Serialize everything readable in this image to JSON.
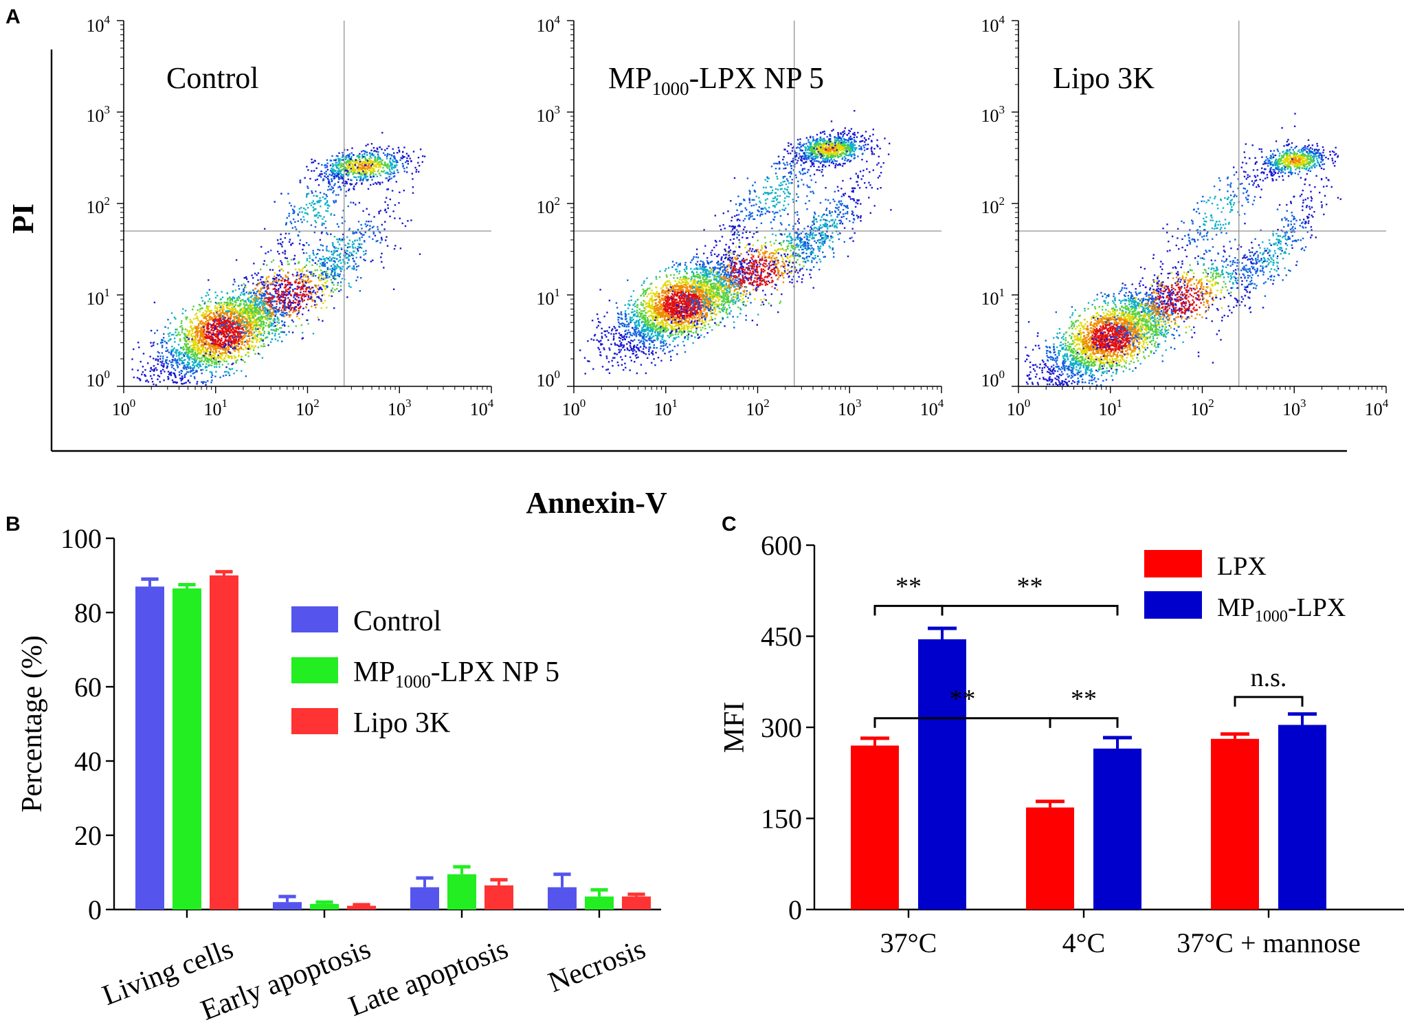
{
  "panel_labels": {
    "a": "A",
    "b": "B",
    "c": "C"
  },
  "chart_data": [
    {
      "type": "scatter",
      "panel": "A",
      "description_kind": "flow cytometry density plots",
      "axis_labels": {
        "x": "Annexin-V",
        "y": "PI"
      },
      "tick_labels": [
        "10",
        "10",
        "10",
        "10",
        "10"
      ],
      "tick_exponents": [
        "0",
        "1",
        "2",
        "3",
        "4"
      ],
      "xlim": [
        1,
        10000
      ],
      "ylim": [
        1,
        10000
      ],
      "x_scale": "log",
      "y_scale": "log",
      "gate": {
        "x": 250,
        "y": 50
      },
      "plots": [
        {
          "name": "Control",
          "title_main": "Control",
          "title_sub": "",
          "title_tail": "",
          "clusters": [
            {
              "cx": 12,
              "cy": 4,
              "n": 2600,
              "sx": 0.38,
              "sy": 0.28,
              "rho": 0.7
            },
            {
              "cx": 60,
              "cy": 10,
              "n": 700,
              "sx": 0.45,
              "sy": 0.3,
              "rho": 0.8
            },
            {
              "cx": 400,
              "cy": 260,
              "n": 650,
              "sx": 0.25,
              "sy": 0.09,
              "rho": 0.3
            },
            {
              "cx": 120,
              "cy": 90,
              "n": 260,
              "sx": 0.3,
              "sy": 0.3,
              "rho": 0.85
            },
            {
              "cx": 250,
              "cy": 30,
              "n": 300,
              "sx": 0.35,
              "sy": 0.35,
              "rho": 0.9
            }
          ]
        },
        {
          "name": "MP1000-LPX NP 5",
          "title_main": "MP",
          "title_sub": "1000",
          "title_tail": "-LPX NP 5",
          "clusters": [
            {
              "cx": 15,
              "cy": 8,
              "n": 2800,
              "sx": 0.38,
              "sy": 0.26,
              "rho": 0.7
            },
            {
              "cx": 90,
              "cy": 18,
              "n": 800,
              "sx": 0.45,
              "sy": 0.3,
              "rho": 0.85
            },
            {
              "cx": 600,
              "cy": 400,
              "n": 800,
              "sx": 0.2,
              "sy": 0.08,
              "rho": 0.3
            },
            {
              "cx": 150,
              "cy": 130,
              "n": 350,
              "sx": 0.35,
              "sy": 0.32,
              "rho": 0.85
            },
            {
              "cx": 500,
              "cy": 50,
              "n": 350,
              "sx": 0.3,
              "sy": 0.35,
              "rho": 0.9
            }
          ]
        },
        {
          "name": "Lipo 3K",
          "title_main": "Lipo 3K",
          "title_sub": "",
          "title_tail": "",
          "clusters": [
            {
              "cx": 10,
              "cy": 3.5,
              "n": 2600,
              "sx": 0.38,
              "sy": 0.27,
              "rho": 0.7
            },
            {
              "cx": 55,
              "cy": 9,
              "n": 750,
              "sx": 0.45,
              "sy": 0.3,
              "rho": 0.85
            },
            {
              "cx": 1000,
              "cy": 300,
              "n": 550,
              "sx": 0.18,
              "sy": 0.08,
              "rho": 0.4
            },
            {
              "cx": 150,
              "cy": 80,
              "n": 250,
              "sx": 0.35,
              "sy": 0.35,
              "rho": 0.85
            },
            {
              "cx": 600,
              "cy": 30,
              "n": 350,
              "sx": 0.3,
              "sy": 0.38,
              "rho": 0.9
            }
          ]
        }
      ]
    },
    {
      "type": "bar",
      "panel": "B",
      "ylabel": "Percentage (%)",
      "ylim": [
        0,
        100
      ],
      "yticks": [
        "0",
        "20",
        "40",
        "60",
        "80",
        "100"
      ],
      "categories": [
        "Living cells",
        "Early apoptosis",
        "Late apoptosis",
        "Necrosis"
      ],
      "series": [
        {
          "name": "Control",
          "name_main": "Control",
          "name_sub": "",
          "name_tail": "",
          "color": "#5555ee",
          "values": [
            87,
            2,
            6,
            6
          ],
          "errors": [
            2,
            1.5,
            2.5,
            3.5
          ]
        },
        {
          "name": "MP1000-LPX NP 5",
          "name_main": "MP",
          "name_sub": "1000",
          "name_tail": "-LPX NP 5",
          "color": "#22ee22",
          "values": [
            86.5,
            1.5,
            9.5,
            3.5
          ],
          "errors": [
            1,
            0.5,
            2,
            1.8
          ]
        },
        {
          "name": "Lipo 3K",
          "name_main": "Lipo 3K",
          "name_sub": "",
          "name_tail": "",
          "color": "#ff3333",
          "values": [
            90,
            1,
            6.5,
            3.5
          ],
          "errors": [
            1,
            0.3,
            1.5,
            0.6
          ]
        }
      ]
    },
    {
      "type": "bar",
      "panel": "C",
      "ylabel": "MFI",
      "ylim": [
        0,
        600
      ],
      "yticks": [
        "0",
        "150",
        "300",
        "450",
        "600"
      ],
      "categories": [
        "37°C",
        "4°C",
        "37°C + mannose"
      ],
      "series": [
        {
          "name": "LPX",
          "name_main": "LPX",
          "name_sub": "",
          "name_tail": "",
          "color": "#ff0000",
          "values": [
            270,
            168,
            281
          ],
          "errors": [
            12,
            10,
            8
          ]
        },
        {
          "name": "MP1000-LPX",
          "name_main": "MP",
          "name_sub": "1000",
          "name_tail": "-LPX",
          "color": "#0000cc",
          "values": [
            445,
            265,
            304
          ],
          "errors": [
            18,
            18,
            18
          ]
        }
      ],
      "significance": [
        {
          "label": "**",
          "from": [
            0,
            0
          ],
          "to": [
            0,
            1
          ],
          "level": 500
        },
        {
          "label": "**",
          "from": [
            0,
            1
          ],
          "to": [
            1,
            1
          ],
          "level": 500
        },
        {
          "label": "**",
          "from": [
            0,
            0
          ],
          "to": [
            1,
            0
          ],
          "level": 315
        },
        {
          "label": "**",
          "from": [
            1,
            0
          ],
          "to": [
            1,
            1
          ],
          "level": 315
        },
        {
          "label": "n.s.",
          "from": [
            2,
            0
          ],
          "to": [
            2,
            1
          ],
          "level": 350
        }
      ]
    }
  ]
}
